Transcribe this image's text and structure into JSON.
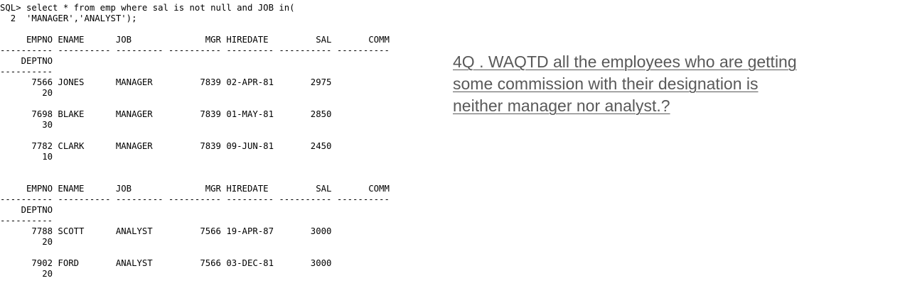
{
  "console": {
    "query_line1": "SQL> select * from emp where sal is not null and JOB in(",
    "query_line2": "  2  'MANAGER','ANALYST');",
    "header_cols": "     EMPNO ENAME      JOB              MGR HIREDATE         SAL       COMM",
    "header_rule": "---------- ---------- --------- ---------- --------- ---------- ----------",
    "deptno_label": "    DEPTNO",
    "deptno_rule": "----------",
    "blocks": [
      {
        "rows": [
          {
            "main": "      7566 JONES      MANAGER         7839 02-APR-81       2975",
            "dept": "        20"
          },
          {
            "main": "      7698 BLAKE      MANAGER         7839 01-MAY-81       2850",
            "dept": "        30"
          },
          {
            "main": "      7782 CLARK      MANAGER         7839 09-JUN-81       2450",
            "dept": "        10"
          }
        ]
      },
      {
        "rows": [
          {
            "main": "      7788 SCOTT      ANALYST         7566 19-APR-87       3000",
            "dept": "        20"
          },
          {
            "main": "      7902 FORD       ANALYST         7566 03-DEC-81       3000",
            "dept": "        20"
          }
        ]
      }
    ]
  },
  "question": {
    "line1": "4Q . WAQTD all the employees who are getting",
    "line2": "some commission with their designation is",
    "line3": "neither manager nor analyst.?"
  }
}
